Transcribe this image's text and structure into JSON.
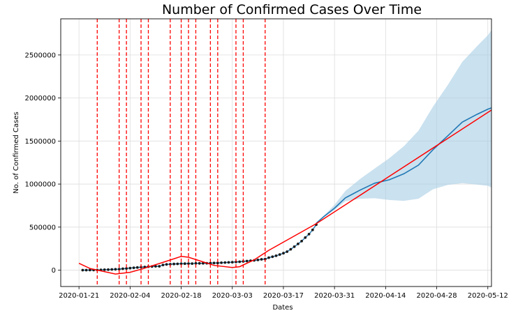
{
  "chart_data": {
    "type": "line",
    "title": "Number of Confirmed Cases Over Time",
    "xlabel": "Dates",
    "ylabel": "No. of Confirmed Cases",
    "x_ticks": [
      "2020-01-21",
      "2020-02-04",
      "2020-02-18",
      "2020-03-03",
      "2020-03-17",
      "2020-03-31",
      "2020-04-14",
      "2020-04-28",
      "2020-05-12"
    ],
    "y_ticks": [
      0,
      500000,
      1000000,
      1500000,
      2000000,
      2500000
    ],
    "xlim": [
      "2020-01-16",
      "2020-05-13"
    ],
    "ylim": [
      -190000,
      2920000
    ],
    "grid": true,
    "series": [
      {
        "kind": "observed",
        "marker": "dot",
        "color": "#1a1a1a",
        "points": [
          [
            "2020-01-22",
            555
          ],
          [
            "2020-01-23",
            654
          ],
          [
            "2020-01-24",
            941
          ],
          [
            "2020-01-25",
            1434
          ],
          [
            "2020-01-26",
            2118
          ],
          [
            "2020-01-27",
            2927
          ],
          [
            "2020-01-28",
            5578
          ],
          [
            "2020-01-29",
            6166
          ],
          [
            "2020-01-30",
            8234
          ],
          [
            "2020-01-31",
            9927
          ],
          [
            "2020-02-01",
            12038
          ],
          [
            "2020-02-02",
            16787
          ],
          [
            "2020-02-03",
            19881
          ],
          [
            "2020-02-04",
            23892
          ],
          [
            "2020-02-05",
            27635
          ],
          [
            "2020-02-06",
            30794
          ],
          [
            "2020-02-07",
            34391
          ],
          [
            "2020-02-08",
            37120
          ],
          [
            "2020-02-09",
            40150
          ],
          [
            "2020-02-10",
            42762
          ],
          [
            "2020-02-11",
            44802
          ],
          [
            "2020-02-12",
            45221
          ],
          [
            "2020-02-13",
            60368
          ],
          [
            "2020-02-14",
            66885
          ],
          [
            "2020-02-15",
            69030
          ],
          [
            "2020-02-16",
            71224
          ],
          [
            "2020-02-17",
            73258
          ],
          [
            "2020-02-18",
            75136
          ],
          [
            "2020-02-19",
            75639
          ],
          [
            "2020-02-20",
            76197
          ],
          [
            "2020-02-21",
            76819
          ],
          [
            "2020-02-22",
            78572
          ],
          [
            "2020-02-23",
            78958
          ],
          [
            "2020-02-24",
            79561
          ],
          [
            "2020-02-25",
            80406
          ],
          [
            "2020-02-26",
            81388
          ],
          [
            "2020-02-27",
            82746
          ],
          [
            "2020-02-28",
            84112
          ],
          [
            "2020-02-29",
            86011
          ],
          [
            "2020-03-01",
            88369
          ],
          [
            "2020-03-02",
            90306
          ],
          [
            "2020-03-03",
            92840
          ],
          [
            "2020-03-04",
            95120
          ],
          [
            "2020-03-05",
            97886
          ],
          [
            "2020-03-06",
            101801
          ],
          [
            "2020-03-07",
            105847
          ],
          [
            "2020-03-08",
            109821
          ],
          [
            "2020-03-09",
            113590
          ],
          [
            "2020-03-10",
            118620
          ],
          [
            "2020-03-11",
            125875
          ],
          [
            "2020-03-12",
            128352
          ],
          [
            "2020-03-13",
            145205
          ],
          [
            "2020-03-14",
            156101
          ],
          [
            "2020-03-15",
            167454
          ],
          [
            "2020-03-16",
            181574
          ],
          [
            "2020-03-17",
            197102
          ],
          [
            "2020-03-18",
            214821
          ],
          [
            "2020-03-19",
            242570
          ],
          [
            "2020-03-20",
            272208
          ],
          [
            "2020-03-21",
            304507
          ],
          [
            "2020-03-22",
            336953
          ],
          [
            "2020-03-23",
            378231
          ],
          [
            "2020-03-24",
            418041
          ],
          [
            "2020-03-25",
            467653
          ],
          [
            "2020-03-26",
            529591
          ]
        ]
      },
      {
        "kind": "forecast",
        "color": "#1f77b4",
        "points": [
          [
            "2020-03-26",
            545000
          ],
          [
            "2020-03-28",
            620000
          ],
          [
            "2020-03-31",
            720000
          ],
          [
            "2020-04-03",
            840000
          ],
          [
            "2020-04-07",
            930000
          ],
          [
            "2020-04-11",
            1010000
          ],
          [
            "2020-04-15",
            1050000
          ],
          [
            "2020-04-19",
            1120000
          ],
          [
            "2020-04-23",
            1220000
          ],
          [
            "2020-04-27",
            1400000
          ],
          [
            "2020-05-01",
            1560000
          ],
          [
            "2020-05-05",
            1720000
          ],
          [
            "2020-05-09",
            1810000
          ],
          [
            "2020-05-12",
            1870000
          ],
          [
            "2020-05-13",
            1885000
          ]
        ]
      }
    ],
    "uncertainty_band": {
      "color": "#a6cde5",
      "upper": [
        [
          "2020-03-26",
          545000
        ],
        [
          "2020-03-28",
          630000
        ],
        [
          "2020-03-31",
          760000
        ],
        [
          "2020-04-03",
          920000
        ],
        [
          "2020-04-07",
          1060000
        ],
        [
          "2020-04-11",
          1180000
        ],
        [
          "2020-04-15",
          1300000
        ],
        [
          "2020-04-19",
          1440000
        ],
        [
          "2020-04-23",
          1620000
        ],
        [
          "2020-04-27",
          1900000
        ],
        [
          "2020-05-01",
          2150000
        ],
        [
          "2020-05-05",
          2420000
        ],
        [
          "2020-05-09",
          2600000
        ],
        [
          "2020-05-12",
          2730000
        ],
        [
          "2020-05-13",
          2790000
        ]
      ],
      "lower": [
        [
          "2020-03-26",
          545000
        ],
        [
          "2020-03-28",
          610000
        ],
        [
          "2020-03-31",
          700000
        ],
        [
          "2020-04-03",
          800000
        ],
        [
          "2020-04-07",
          830000
        ],
        [
          "2020-04-11",
          835000
        ],
        [
          "2020-04-15",
          815000
        ],
        [
          "2020-04-19",
          805000
        ],
        [
          "2020-04-23",
          830000
        ],
        [
          "2020-04-27",
          940000
        ],
        [
          "2020-05-01",
          990000
        ],
        [
          "2020-05-05",
          1010000
        ],
        [
          "2020-05-09",
          995000
        ],
        [
          "2020-05-12",
          980000
        ],
        [
          "2020-05-13",
          960000
        ]
      ]
    },
    "trend_line": {
      "color": "#ff0000",
      "points": [
        [
          "2020-01-21",
          80000
        ],
        [
          "2020-01-24",
          20000
        ],
        [
          "2020-01-31",
          -45000
        ],
        [
          "2020-02-04",
          -25000
        ],
        [
          "2020-02-07",
          10000
        ],
        [
          "2020-02-13",
          90000
        ],
        [
          "2020-02-18",
          160000
        ],
        [
          "2020-02-20",
          150000
        ],
        [
          "2020-02-23",
          110000
        ],
        [
          "2020-02-27",
          55000
        ],
        [
          "2020-03-03",
          30000
        ],
        [
          "2020-03-05",
          40000
        ],
        [
          "2020-03-09",
          120000
        ],
        [
          "2020-03-13",
          230000
        ],
        [
          "2020-03-26",
          540000
        ],
        [
          "2020-05-13",
          1860000
        ]
      ]
    },
    "changepoints": {
      "color": "#ff0000",
      "style": "dashed",
      "dates": [
        "2020-01-26",
        "2020-02-01",
        "2020-02-03",
        "2020-02-07",
        "2020-02-09",
        "2020-02-15",
        "2020-02-18",
        "2020-02-20",
        "2020-02-22",
        "2020-02-26",
        "2020-02-28",
        "2020-03-04",
        "2020-03-06",
        "2020-03-12"
      ]
    }
  }
}
